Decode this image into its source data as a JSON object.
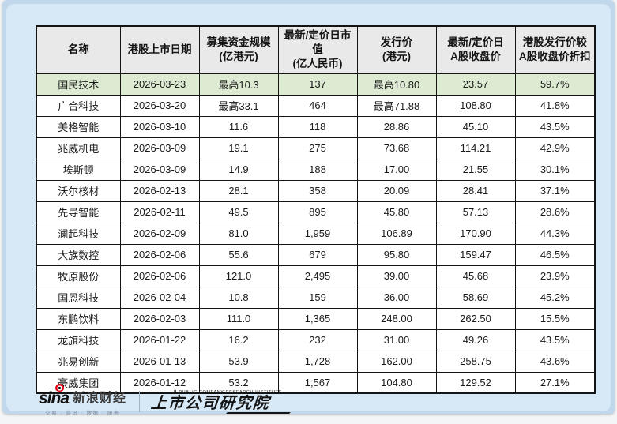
{
  "palette": {
    "outer_blue": "#c1d8ec",
    "card_blue": "#d7e9f7",
    "header_gray": "#e9e9e9",
    "highlight_green": "#dcebd2",
    "border_black": "#141414",
    "sina_red": "#e60012"
  },
  "table": {
    "columns": [
      {
        "label_lines": [
          "名称"
        ]
      },
      {
        "label_lines": [
          "港股上市日期"
        ]
      },
      {
        "label_lines": [
          "募集资金规模",
          "(亿港元)"
        ]
      },
      {
        "label_lines": [
          "最新/定价日市值",
          "(亿人民币)"
        ]
      },
      {
        "label_lines": [
          "发行价",
          "(港元)"
        ]
      },
      {
        "label_lines": [
          "最新/定价日",
          "A股收盘价"
        ]
      },
      {
        "label_lines": [
          "港股发行价较",
          "A股收盘价折扣"
        ]
      }
    ],
    "highlight_row_index": 0,
    "rows": [
      [
        "国民技术",
        "2026-03-23",
        "最高10.3",
        "137",
        "最高10.80",
        "23.57",
        "59.7%"
      ],
      [
        "广合科技",
        "2026-03-20",
        "最高33.1",
        "464",
        "最高71.88",
        "108.80",
        "41.8%"
      ],
      [
        "美格智能",
        "2026-03-10",
        "11.6",
        "118",
        "28.86",
        "45.10",
        "43.5%"
      ],
      [
        "兆威机电",
        "2026-03-09",
        "19.1",
        "275",
        "73.68",
        "114.21",
        "42.9%"
      ],
      [
        "埃斯顿",
        "2026-03-09",
        "14.9",
        "188",
        "17.00",
        "21.55",
        "30.1%"
      ],
      [
        "沃尔核材",
        "2026-02-13",
        "28.1",
        "358",
        "20.09",
        "28.41",
        "37.1%"
      ],
      [
        "先导智能",
        "2026-02-11",
        "49.5",
        "895",
        "45.80",
        "57.13",
        "28.6%"
      ],
      [
        "澜起科技",
        "2026-02-09",
        "81.0",
        "1,959",
        "106.89",
        "170.90",
        "44.3%"
      ],
      [
        "大族数控",
        "2026-02-06",
        "55.6",
        "679",
        "95.80",
        "159.47",
        "46.5%"
      ],
      [
        "牧原股份",
        "2026-02-06",
        "121.0",
        "2,495",
        "39.00",
        "45.68",
        "23.9%"
      ],
      [
        "国恩科技",
        "2026-02-04",
        "10.8",
        "159",
        "36.00",
        "58.69",
        "45.2%"
      ],
      [
        "东鹏饮料",
        "2026-02-03",
        "111.0",
        "1,365",
        "248.00",
        "262.50",
        "15.5%"
      ],
      [
        "龙旗科技",
        "2026-01-22",
        "16.2",
        "232",
        "31.00",
        "49.26",
        "43.5%"
      ],
      [
        "兆易创新",
        "2026-01-13",
        "53.9",
        "1,728",
        "162.00",
        "258.75",
        "43.6%"
      ],
      [
        "豪威集团",
        "2026-01-12",
        "53.2",
        "1,567",
        "104.80",
        "129.52",
        "27.1%"
      ]
    ]
  },
  "footer": {
    "sina_logo_text": "sina",
    "sina_brand": "新浪财经",
    "sina_tagline": "交易 · 资讯 · 数据 · 服务",
    "institute_arrow": "↗",
    "institute_caption": "PUBLIC COMPANY RESEARCH INSTITUTE",
    "institute_name": "上市公司研究院"
  },
  "chart_data": {
    "type": "table",
    "title": "",
    "columns": [
      "名称",
      "港股上市日期",
      "募集资金规模(亿港元)",
      "最新/定价日市值(亿人民币)",
      "发行价(港元)",
      "最新/定价日A股收盘价",
      "港股发行价较A股收盘价折扣"
    ],
    "rows": [
      [
        "国民技术",
        "2026-03-23",
        "最高10.3",
        "137",
        "最高10.80",
        "23.57",
        "59.7%"
      ],
      [
        "广合科技",
        "2026-03-20",
        "最高33.1",
        "464",
        "最高71.88",
        "108.80",
        "41.8%"
      ],
      [
        "美格智能",
        "2026-03-10",
        "11.6",
        "118",
        "28.86",
        "45.10",
        "43.5%"
      ],
      [
        "兆威机电",
        "2026-03-09",
        "19.1",
        "275",
        "73.68",
        "114.21",
        "42.9%"
      ],
      [
        "埃斯顿",
        "2026-03-09",
        "14.9",
        "188",
        "17.00",
        "21.55",
        "30.1%"
      ],
      [
        "沃尔核材",
        "2026-02-13",
        "28.1",
        "358",
        "20.09",
        "28.41",
        "37.1%"
      ],
      [
        "先导智能",
        "2026-02-11",
        "49.5",
        "895",
        "45.80",
        "57.13",
        "28.6%"
      ],
      [
        "澜起科技",
        "2026-02-09",
        "81.0",
        "1,959",
        "106.89",
        "170.90",
        "44.3%"
      ],
      [
        "大族数控",
        "2026-02-06",
        "55.6",
        "679",
        "95.80",
        "159.47",
        "46.5%"
      ],
      [
        "牧原股份",
        "2026-02-06",
        "121.0",
        "2,495",
        "39.00",
        "45.68",
        "23.9%"
      ],
      [
        "国恩科技",
        "2026-02-04",
        "10.8",
        "159",
        "36.00",
        "58.69",
        "45.2%"
      ],
      [
        "东鹏饮料",
        "2026-02-03",
        "111.0",
        "1,365",
        "248.00",
        "262.50",
        "15.5%"
      ],
      [
        "龙旗科技",
        "2026-01-22",
        "16.2",
        "232",
        "31.00",
        "49.26",
        "43.5%"
      ],
      [
        "兆易创新",
        "2026-01-13",
        "53.9",
        "1,728",
        "162.00",
        "258.75",
        "43.6%"
      ],
      [
        "豪威集团",
        "2026-01-12",
        "53.2",
        "1,567",
        "104.80",
        "129.52",
        "27.1%"
      ]
    ],
    "layout_hints": {
      "highlight_row": "国民技术",
      "highlight_color": "#dcebd2",
      "header_background": "#e9e9e9",
      "grid": true
    }
  }
}
